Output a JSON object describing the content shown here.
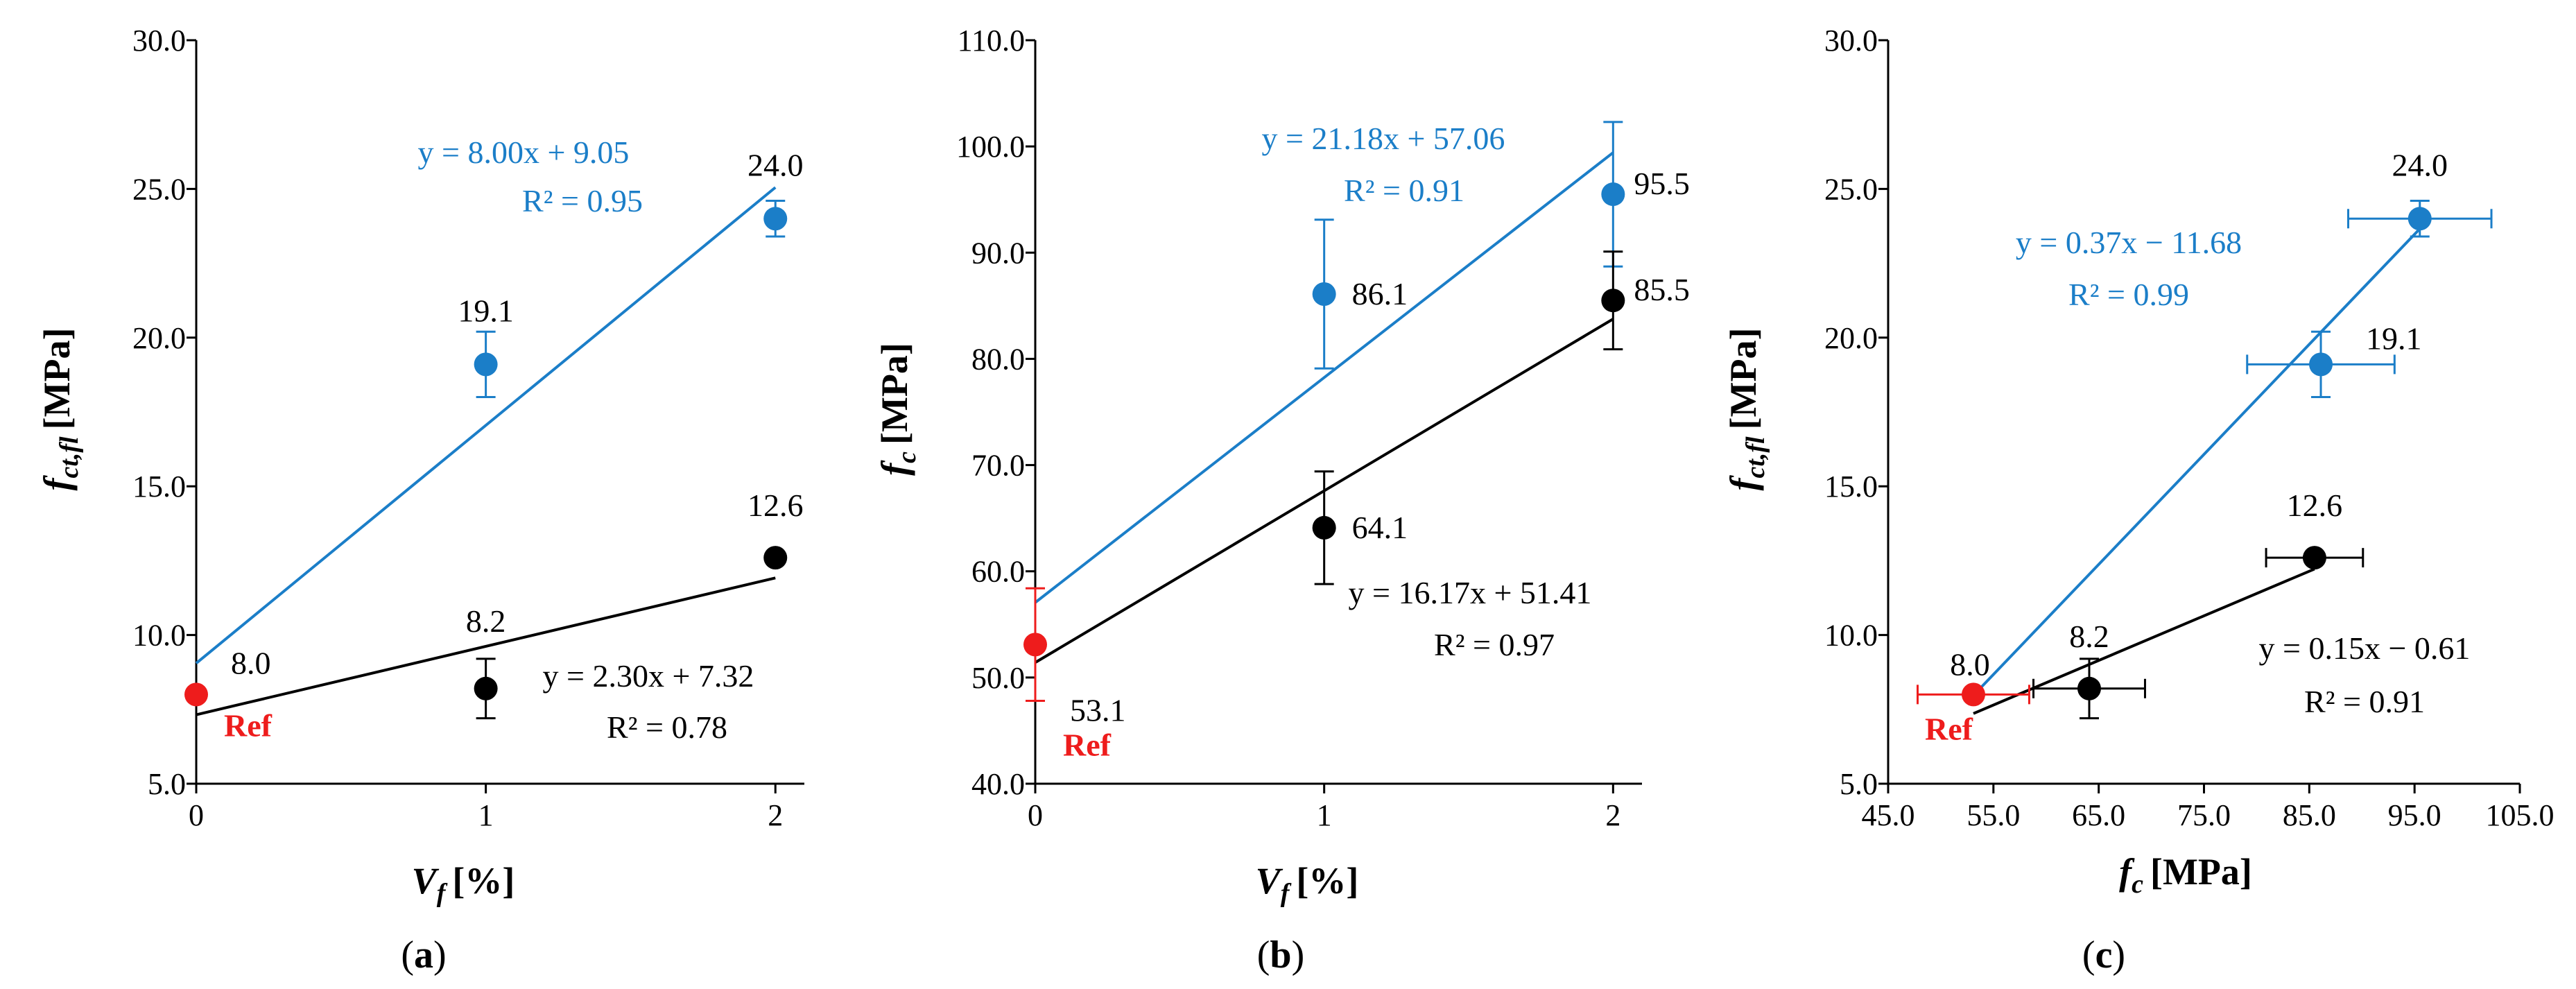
{
  "colors": {
    "blue": "#1b7ec8",
    "black": "#000000",
    "red": "#ee1c1c",
    "axis": "#000000"
  },
  "chart_data": [
    {
      "id": "a",
      "type": "scatter",
      "panel_label": "(a)",
      "xlabel": {
        "symbol": "V",
        "subscript": "f",
        "unit": "[%]"
      },
      "ylabel": {
        "symbol": "f",
        "subscript": "ct,fl",
        "unit": "[MPa]"
      },
      "xlim": [
        0,
        2.1
      ],
      "ylim": [
        5.0,
        30.0
      ],
      "x_ticks": [
        0,
        1,
        2
      ],
      "x_tick_labels": [
        "0",
        "1",
        "2"
      ],
      "y_ticks": [
        5,
        10,
        15,
        20,
        25,
        30
      ],
      "y_tick_labels": [
        "5.0",
        "10.0",
        "15.0",
        "20.0",
        "25.0",
        "30.0"
      ],
      "series": [
        {
          "name": "blue",
          "color": "blue",
          "points": [
            {
              "x": 1,
              "y": 19.1,
              "err_y": 1.1,
              "label": "19.1"
            },
            {
              "x": 2,
              "y": 24.0,
              "err_y": 0.6,
              "label": "24.0"
            }
          ],
          "trend": {
            "x0": 0,
            "y0": 9.05,
            "x1": 2,
            "y1": 25.05
          },
          "equation": "y = 8.00x + 9.05",
          "r2": "R² = 0.95"
        },
        {
          "name": "black",
          "color": "black",
          "points": [
            {
              "x": 1,
              "y": 8.2,
              "err_y": 1.0,
              "label": "8.2"
            },
            {
              "x": 2,
              "y": 12.6,
              "err_y": 0,
              "label": "12.6"
            }
          ],
          "trend": {
            "x0": 0,
            "y0": 7.32,
            "x1": 2,
            "y1": 11.92
          },
          "equation": "y = 2.30x + 7.32",
          "r2": "R² = 0.78"
        },
        {
          "name": "Ref",
          "color": "red",
          "points": [
            {
              "x": 0,
              "y": 8.0,
              "label": "8.0"
            }
          ],
          "tag": "Ref"
        }
      ]
    },
    {
      "id": "b",
      "type": "scatter",
      "panel_label": "(b)",
      "xlabel": {
        "symbol": "V",
        "subscript": "f",
        "unit": "[%]"
      },
      "ylabel": {
        "symbol": "f",
        "subscript": "c",
        "unit": "[MPa]"
      },
      "xlim": [
        0,
        2.1
      ],
      "ylim": [
        40.0,
        110.0
      ],
      "x_ticks": [
        0,
        1,
        2
      ],
      "x_tick_labels": [
        "0",
        "1",
        "2"
      ],
      "y_ticks": [
        40,
        50,
        60,
        70,
        80,
        90,
        100,
        110
      ],
      "y_tick_labels": [
        "40.0",
        "50.0",
        "60.0",
        "70.0",
        "80.0",
        "90.0",
        "100.0",
        "110.0"
      ],
      "series": [
        {
          "name": "blue",
          "color": "blue",
          "points": [
            {
              "x": 1,
              "y": 86.1,
              "err_y": 7.0,
              "label": "86.1"
            },
            {
              "x": 2,
              "y": 95.5,
              "err_y": 6.8,
              "label": "95.5"
            }
          ],
          "trend": {
            "x0": 0,
            "y0": 57.06,
            "x1": 2,
            "y1": 99.42
          },
          "equation": "y = 21.18x + 57.06",
          "r2": "R² = 0.91"
        },
        {
          "name": "black",
          "color": "black",
          "points": [
            {
              "x": 1,
              "y": 64.1,
              "err_y": 5.3,
              "label": "64.1"
            },
            {
              "x": 2,
              "y": 85.5,
              "err_y": 4.6,
              "label": "85.5"
            }
          ],
          "trend": {
            "x0": 0,
            "y0": 51.41,
            "x1": 2,
            "y1": 83.75
          },
          "equation": "y = 16.17x + 51.41",
          "r2": "R² = 0.97"
        },
        {
          "name": "Ref",
          "color": "red",
          "points": [
            {
              "x": 0,
              "y": 53.1,
              "err_y": 5.3,
              "label": "53.1"
            }
          ],
          "tag": "Ref"
        }
      ]
    },
    {
      "id": "c",
      "type": "scatter",
      "panel_label": "(c)",
      "xlabel": {
        "symbol": "f",
        "subscript": "c",
        "unit": "[MPa]"
      },
      "ylabel": {
        "symbol": "f",
        "subscript": "ct,fl",
        "unit": "[MPa]"
      },
      "xlim": [
        45.0,
        105.0
      ],
      "ylim": [
        5.0,
        30.0
      ],
      "x_ticks": [
        45,
        55,
        65,
        75,
        85,
        95,
        105
      ],
      "x_tick_labels": [
        "45.0",
        "55.0",
        "65.0",
        "75.0",
        "85.0",
        "95.0",
        "105.0"
      ],
      "y_ticks": [
        5,
        10,
        15,
        20,
        25,
        30
      ],
      "y_tick_labels": [
        "5.0",
        "10.0",
        "15.0",
        "20.0",
        "25.0",
        "30.0"
      ],
      "series": [
        {
          "name": "blue",
          "color": "blue",
          "points": [
            {
              "x": 86.1,
              "y": 19.1,
              "err_x": 7.0,
              "err_y": 1.1,
              "label": "19.1"
            },
            {
              "x": 95.5,
              "y": 24.0,
              "err_x": 6.8,
              "err_y": 0.6,
              "label": "24.0"
            }
          ],
          "trend": {
            "x0": 53.1,
            "y0": 7.97,
            "x1": 95.5,
            "y1": 23.66
          },
          "equation": "y = 0.37x − 11.68",
          "r2": "R² = 0.99"
        },
        {
          "name": "black",
          "color": "black",
          "points": [
            {
              "x": 64.1,
              "y": 8.2,
              "err_x": 5.3,
              "err_y": 1.0,
              "label": "8.2"
            },
            {
              "x": 85.5,
              "y": 12.6,
              "err_x": 4.6,
              "err_y": 0,
              "label": "12.6"
            }
          ],
          "trend": {
            "x0": 53.1,
            "y0": 7.36,
            "x1": 85.5,
            "y1": 12.22
          },
          "equation": "y = 0.15x − 0.61",
          "r2": "R² = 0.91"
        },
        {
          "name": "Ref",
          "color": "red",
          "points": [
            {
              "x": 53.1,
              "y": 8.0,
              "err_x": 5.3,
              "label": "8.0"
            }
          ],
          "tag": "Ref"
        }
      ]
    }
  ]
}
